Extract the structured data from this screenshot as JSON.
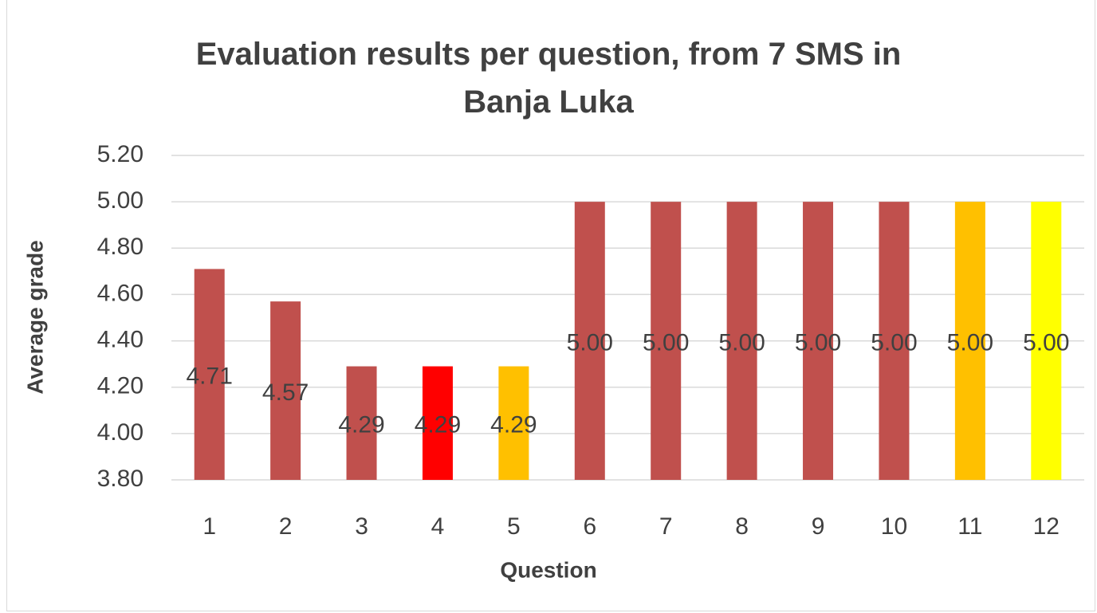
{
  "chart_data": {
    "type": "bar",
    "title": "Evaluation results per question, from 7 SMS in Banja Luka",
    "x_label": "Question",
    "y_label": "Average grade",
    "categories": [
      "1",
      "2",
      "3",
      "4",
      "5",
      "6",
      "7",
      "8",
      "9",
      "10",
      "11",
      "12"
    ],
    "values": [
      4.71,
      4.57,
      4.29,
      4.29,
      4.29,
      5,
      5,
      5,
      5,
      5,
      5,
      5
    ],
    "value_labels": [
      "4.71",
      "4.57",
      "4.29",
      "4.29",
      "4.29",
      "5.00",
      "5.00",
      "5.00",
      "5.00",
      "5.00",
      "5.00",
      "5.00"
    ],
    "colors": [
      "#c0504d",
      "#c0504d",
      "#c0504d",
      "#ff0000",
      "#ffc000",
      "#c0504d",
      "#c0504d",
      "#c0504d",
      "#c0504d",
      "#c0504d",
      "#ffc000",
      "#ffff00"
    ],
    "ylim": [
      3.8,
      5.2
    ],
    "yticks": [
      {
        "value": 3.8,
        "label": "3.80"
      },
      {
        "value": 4,
        "label": "4.00"
      },
      {
        "value": 4.2,
        "label": "4.20"
      },
      {
        "value": 4.4,
        "label": "4.40"
      },
      {
        "value": 4.6,
        "label": "4.60"
      },
      {
        "value": 4.8,
        "label": "4.80"
      },
      {
        "value": 5,
        "label": "5.00"
      },
      {
        "value": 5.2,
        "label": "5.20"
      }
    ],
    "grid": true
  }
}
